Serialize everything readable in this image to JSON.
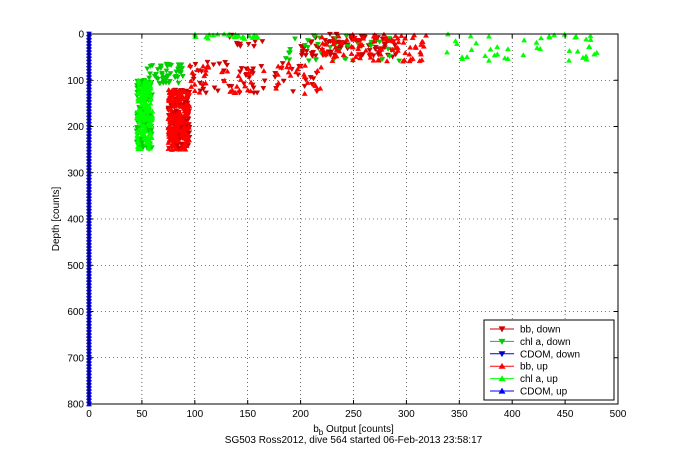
{
  "chart_data": {
    "type": "scatter",
    "title": "",
    "xlabel_main": "b",
    "xlabel_sub": "b",
    "xlabel_rest": " Output [counts]",
    "ylabel": "Depth [counts]",
    "footer": "SG503 Ross2012, dive 564 started 06-Feb-2013 23:58:17",
    "xlim": [
      0,
      500
    ],
    "ylim": [
      0,
      800
    ],
    "y_reversed": true,
    "grid": true,
    "legend_position": "bottom-right",
    "xticks": [
      "0",
      "50",
      "100",
      "150",
      "200",
      "250",
      "300",
      "350",
      "400",
      "450",
      "500"
    ],
    "yticks": [
      "0",
      "100",
      "200",
      "300",
      "400",
      "500",
      "600",
      "700",
      "800"
    ],
    "series": [
      {
        "name": "bb, down",
        "color": "#cc0000",
        "marker": "tri-down",
        "clusters": [
          [
            75,
            95,
            120,
            250,
            180
          ],
          [
            95,
            220,
            60,
            130,
            60
          ],
          [
            200,
            290,
            0,
            50,
            90
          ],
          [
            130,
            165,
            0,
            30,
            10
          ]
        ]
      },
      {
        "name": "chl a, down",
        "color": "#00cc00",
        "marker": "tri-down",
        "clusters": [
          [
            45,
            60,
            100,
            250,
            140
          ],
          [
            55,
            90,
            65,
            110,
            50
          ],
          [
            180,
            300,
            0,
            60,
            40
          ]
        ]
      },
      {
        "name": "CDOM, down",
        "color": "#0000cc",
        "marker": "tri-down",
        "clusters": [
          [
            0,
            0,
            0,
            800,
            120
          ]
        ]
      },
      {
        "name": "bb, up",
        "color": "#ff0000",
        "marker": "tri-up",
        "clusters": [
          [
            75,
            95,
            120,
            250,
            180
          ],
          [
            95,
            220,
            60,
            130,
            60
          ],
          [
            220,
            320,
            0,
            60,
            90
          ]
        ]
      },
      {
        "name": "chl a, up",
        "color": "#00ff00",
        "marker": "tri-up",
        "clusters": [
          [
            45,
            60,
            100,
            250,
            140
          ],
          [
            100,
            160,
            0,
            10,
            30
          ],
          [
            330,
            480,
            0,
            60,
            45
          ]
        ]
      },
      {
        "name": "CDOM, up",
        "color": "#0000ff",
        "marker": "tri-up",
        "clusters": [
          [
            0,
            0,
            0,
            800,
            120
          ]
        ]
      }
    ]
  }
}
